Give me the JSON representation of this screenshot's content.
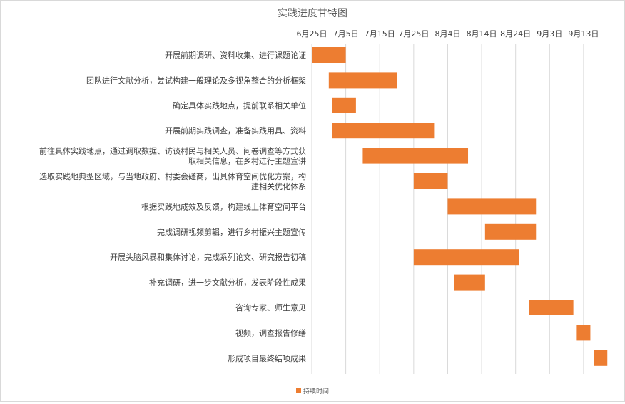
{
  "chart_data": {
    "type": "bar",
    "orientation": "horizontal-gantt",
    "title": "实践进度甘特图",
    "xlabel": "",
    "ylabel": "",
    "axis_position": "top",
    "grid": true,
    "legend_position": "bottom",
    "x_tick_labels": [
      "6月25日",
      "7月5日",
      "7月15日",
      "7月25日",
      "8月4日",
      "8月14日",
      "8月24日",
      "9月3日",
      "9月13日"
    ],
    "xlim": [
      "6月25日",
      "9月21日"
    ],
    "series": [
      {
        "name": "持续时间",
        "color": "#ED7D31"
      }
    ],
    "tasks": [
      {
        "label": [
          "开展前期调研、资料收集、进行课题论证"
        ],
        "start": "6月25日",
        "end": "7月5日"
      },
      {
        "label": [
          "团队进行文献分析，尝试构建一般理论及多视角整合的分析框架"
        ],
        "start": "6月30日",
        "end": "7月20日"
      },
      {
        "label": [
          "确定具体实践地点，提前联系相关单位"
        ],
        "start": "7月1日",
        "end": "7月8日"
      },
      {
        "label": [
          "开展前期实践调查，准备实践用具、资料"
        ],
        "start": "7月1日",
        "end": "7月31日"
      },
      {
        "label": [
          "前往具体实践地点，通过调取数据、访谈村民与相关人员、问卷调查等方式获",
          "取相关信息，在乡村进行主题宣讲"
        ],
        "start": "7月10日",
        "end": "8月10日"
      },
      {
        "label": [
          "选取实践地典型区域，与当地政府、村委会磋商，出具体育空间优化方案，构",
          "建相关优化体系"
        ],
        "start": "7月25日",
        "end": "8月4日"
      },
      {
        "label": [
          "根据实践地成效及反馈，构建线上体育空间平台"
        ],
        "start": "8月4日",
        "end": "8月30日"
      },
      {
        "label": [
          "完成调研视频剪辑，进行乡村振兴主题宣传"
        ],
        "start": "8月15日",
        "end": "8月30日"
      },
      {
        "label": [
          "开展头脑风暴和集体讨论，完成系列论文、研究报告初稿"
        ],
        "start": "7月25日",
        "end": "8月25日"
      },
      {
        "label": [
          "补充调研，进一步文献分析，发表阶段性成果"
        ],
        "start": "8月6日",
        "end": "8月15日"
      },
      {
        "label": [
          "咨询专家、师生意见"
        ],
        "start": "8月28日",
        "end": "9月10日"
      },
      {
        "label": [
          "视频，调查报告修缮"
        ],
        "start": "9月11日",
        "end": "9月15日"
      },
      {
        "label": [
          "形成项目最终结项成果"
        ],
        "start": "9月16日",
        "end": "9月20日"
      }
    ]
  }
}
